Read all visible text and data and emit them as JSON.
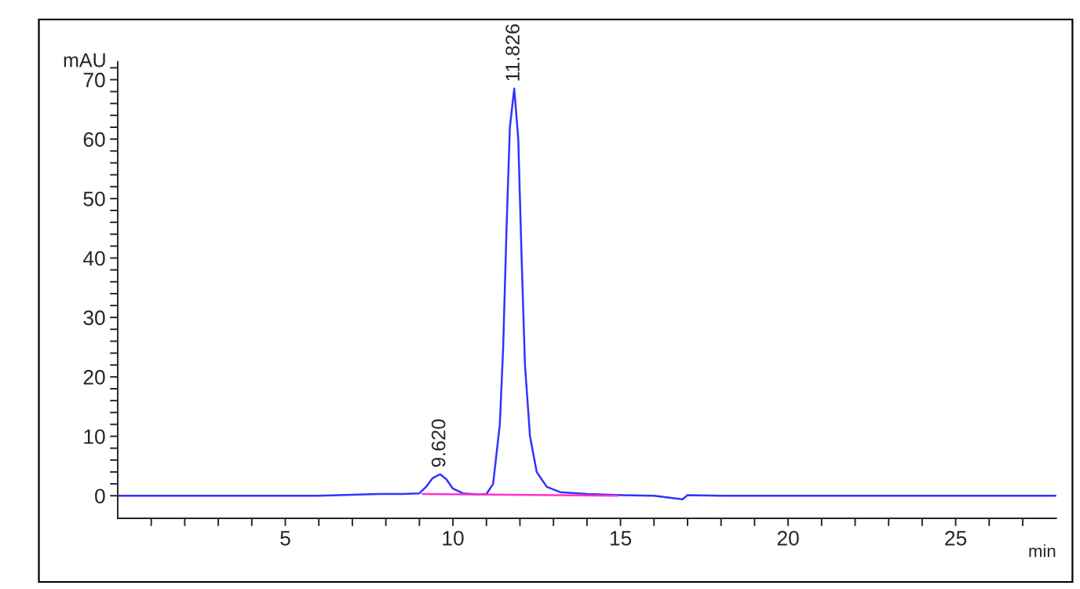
{
  "chart_data": {
    "type": "line",
    "xlabel": "min",
    "ylabel": "mAU",
    "xlim": [
      0,
      28
    ],
    "ylim": [
      -3.8,
      73
    ],
    "xticks": [
      {
        "value": 1,
        "label": null
      },
      {
        "value": 2,
        "label": null
      },
      {
        "value": 3,
        "label": null
      },
      {
        "value": 4,
        "label": null
      },
      5,
      {
        "value": 6,
        "label": null
      },
      {
        "value": 7,
        "label": null
      },
      {
        "value": 8,
        "label": null
      },
      {
        "value": 9,
        "label": null
      },
      10,
      {
        "value": 11,
        "label": null
      },
      {
        "value": 12,
        "label": null
      },
      {
        "value": 13,
        "label": null
      },
      {
        "value": 14,
        "label": null
      },
      15,
      {
        "value": 16,
        "label": null
      },
      {
        "value": 17,
        "label": null
      },
      {
        "value": 18,
        "label": null
      },
      {
        "value": 19,
        "label": null
      },
      20,
      {
        "value": 21,
        "label": null
      },
      {
        "value": 22,
        "label": null
      },
      {
        "value": 23,
        "label": null
      },
      {
        "value": 24,
        "label": null
      },
      25,
      {
        "value": 26,
        "label": null
      },
      {
        "value": 27,
        "label": null
      }
    ],
    "yticks": [
      0,
      {
        "value": 2,
        "label": null
      },
      {
        "value": 4,
        "label": null
      },
      {
        "value": 6,
        "label": null
      },
      {
        "value": 8,
        "label": null
      },
      10,
      {
        "value": 12,
        "label": null
      },
      {
        "value": 14,
        "label": null
      },
      {
        "value": 16,
        "label": null
      },
      {
        "value": 18,
        "label": null
      },
      20,
      {
        "value": 22,
        "label": null
      },
      {
        "value": 24,
        "label": null
      },
      {
        "value": 26,
        "label": null
      },
      {
        "value": 28,
        "label": null
      },
      30,
      {
        "value": 32,
        "label": null
      },
      {
        "value": 34,
        "label": null
      },
      {
        "value": 36,
        "label": null
      },
      {
        "value": 38,
        "label": null
      },
      40,
      {
        "value": 42,
        "label": null
      },
      {
        "value": 44,
        "label": null
      },
      {
        "value": 46,
        "label": null
      },
      {
        "value": 48,
        "label": null
      },
      50,
      {
        "value": 52,
        "label": null
      },
      {
        "value": 54,
        "label": null
      },
      {
        "value": 56,
        "label": null
      },
      {
        "value": 58,
        "label": null
      },
      60,
      {
        "value": 62,
        "label": null
      },
      {
        "value": 64,
        "label": null
      },
      {
        "value": 66,
        "label": null
      },
      {
        "value": 68,
        "label": null
      },
      70,
      {
        "value": 72,
        "label": null
      }
    ],
    "grid": false,
    "legend": false,
    "marker": "none",
    "line_style": "solid",
    "series": [
      {
        "color": "#3333ff",
        "x": [
          0,
          2,
          4,
          6,
          7.8,
          8.5,
          9.0,
          9.2,
          9.4,
          9.62,
          9.8,
          10.0,
          10.3,
          10.8,
          11.0,
          11.2,
          11.4,
          11.5,
          11.6,
          11.7,
          11.83,
          11.95,
          12.05,
          12.15,
          12.3,
          12.5,
          12.8,
          13.2,
          14,
          15,
          16,
          16.7,
          16.85,
          17.0,
          18,
          20,
          24,
          28
        ],
        "values": [
          0,
          0,
          0,
          0,
          0.3,
          0.3,
          0.4,
          1.5,
          3,
          3.6,
          2.8,
          1.2,
          0.4,
          0.2,
          0.3,
          2,
          12,
          25,
          45,
          62,
          68.5,
          60,
          40,
          22,
          10,
          4,
          1.5,
          0.6,
          0.3,
          0.1,
          0,
          -0.5,
          -0.6,
          0.1,
          0,
          0,
          0,
          0
        ]
      },
      {
        "color": "#ff33cc",
        "x": [
          9.1,
          10.9,
          11.0,
          14.9
        ],
        "values": [
          0.3,
          0.2,
          0.2,
          0
        ]
      }
    ],
    "annotations": [
      {
        "text": "9.620",
        "x": 9.62,
        "y": 3.6
      },
      {
        "text": "11.826",
        "x": 11.83,
        "y": 68.5
      }
    ]
  }
}
